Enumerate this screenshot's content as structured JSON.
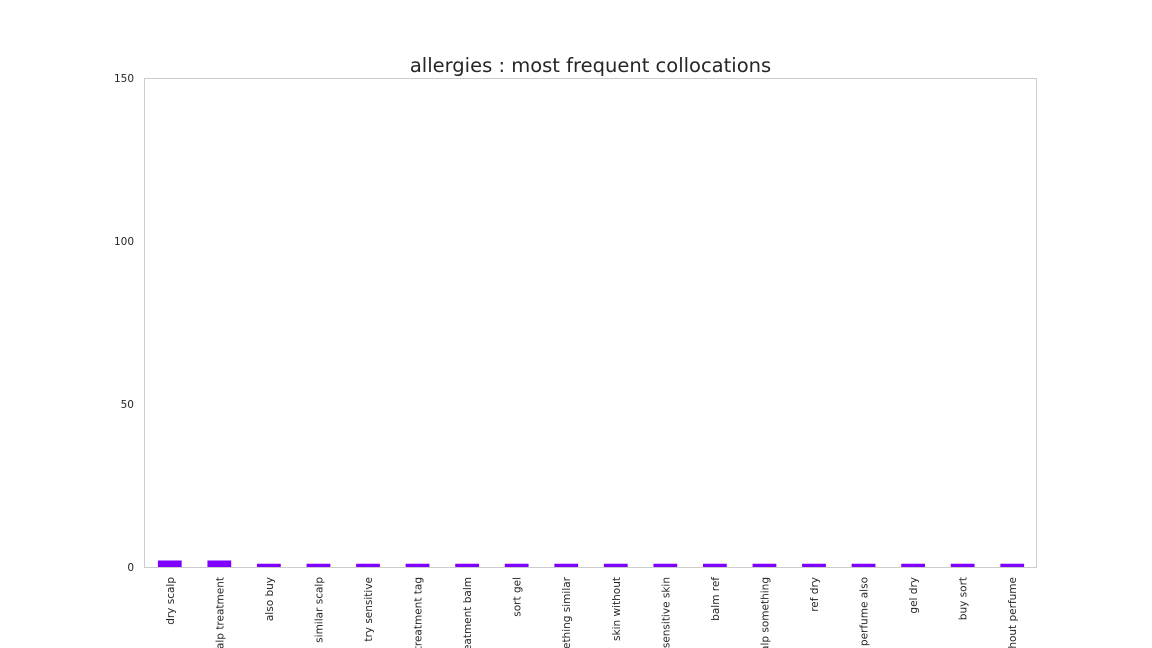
{
  "chart_data": {
    "type": "bar",
    "title": "allergies : most frequent collocations",
    "xlabel": "",
    "ylabel": "",
    "categories": [
      "dry scalp",
      "calp treatment",
      "also buy",
      "similar scalp",
      "try sensitive",
      "treatment tag",
      "reatment balm",
      "sort gel",
      "nething similar",
      "skin without",
      "sensitive skin",
      "balm ref",
      "calp something",
      "ref dry",
      "perfume also",
      "gel dry",
      "buy sort",
      "ithout perfume"
    ],
    "values": [
      2,
      2,
      1,
      1,
      1,
      1,
      1,
      1,
      1,
      1,
      1,
      1,
      1,
      1,
      1,
      1,
      1,
      1
    ],
    "ylim": [
      0,
      150
    ],
    "yticks": [
      0,
      50,
      100,
      150
    ],
    "grid": false,
    "colors": [
      "#7f00ff",
      "#7f00ff",
      "#8000ff",
      "#8000ff",
      "#8000ff",
      "#8000ff",
      "#8000ff",
      "#8000ff",
      "#8000ff",
      "#8000ff",
      "#8000ff",
      "#8000ff",
      "#8000ff",
      "#8000ff",
      "#8000ff",
      "#8000ff",
      "#8000ff",
      "#8000ff"
    ]
  }
}
